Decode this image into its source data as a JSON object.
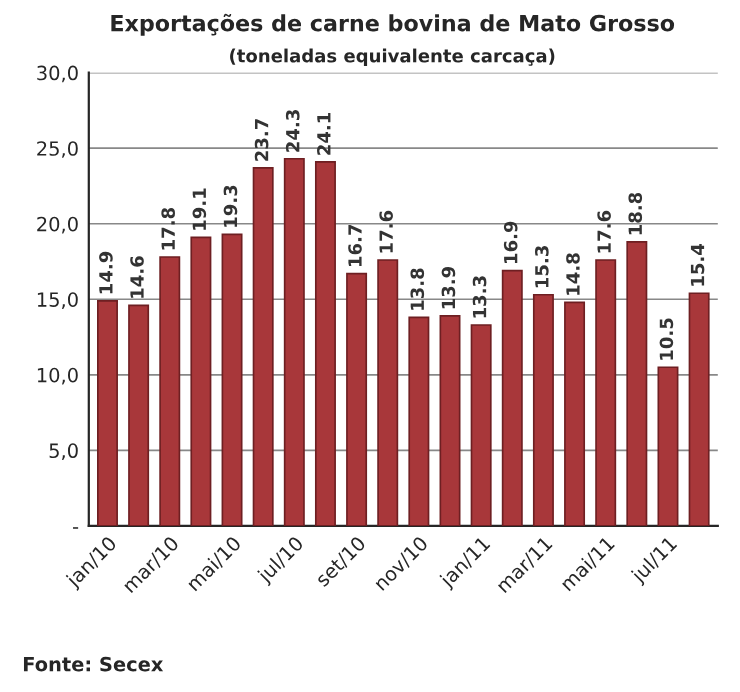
{
  "chart_data": {
    "type": "bar",
    "title": "Exportações de carne bovina de Mato Grosso",
    "subtitle": "(toneladas equivalente carcaça)",
    "categories": [
      "jan/10",
      null,
      "mar/10",
      null,
      "mai/10",
      null,
      "jul/10",
      null,
      "set/10",
      null,
      "nov/10",
      null,
      "jan/11",
      null,
      "mar/11",
      null,
      "mai/11",
      null,
      "jul/11",
      null
    ],
    "values": [
      14.9,
      14.6,
      17.8,
      19.1,
      19.3,
      23.7,
      24.3,
      24.1,
      16.7,
      17.6,
      13.8,
      13.9,
      13.3,
      16.9,
      15.3,
      14.8,
      17.6,
      18.8,
      10.5,
      15.4
    ],
    "color": "#a8373a",
    "data_labels": true,
    "ylim": [
      0,
      30
    ],
    "yticks": [
      {
        "value": 0,
        "label": "-"
      },
      {
        "value": 5,
        "label": "5,0"
      },
      {
        "value": 10,
        "label": "10,0"
      },
      {
        "value": 15,
        "label": "15,0"
      },
      {
        "value": 20,
        "label": "20,0"
      },
      {
        "value": 25,
        "label": "25,0"
      },
      {
        "value": 30,
        "label": "30,0"
      }
    ],
    "grid": "y",
    "annotations": [
      "Fonte: Secex"
    ]
  }
}
